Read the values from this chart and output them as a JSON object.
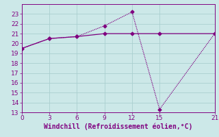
{
  "xlabel": "Windchill (Refroidissement éolien,°C)",
  "background_color": "#cce8e8",
  "grid_color": "#aacfcf",
  "line_color": "#800080",
  "line1_x": [
    0,
    3,
    6,
    9,
    12,
    15,
    21
  ],
  "line1_y": [
    19.5,
    20.5,
    20.7,
    21.0,
    21.0,
    21.0,
    21.0
  ],
  "line2_x": [
    0,
    3,
    6,
    9,
    12,
    15,
    21
  ],
  "line2_y": [
    19.5,
    20.5,
    20.7,
    21.8,
    23.2,
    13.3,
    21.0
  ],
  "xlim": [
    0,
    21
  ],
  "ylim": [
    13,
    24
  ],
  "xticks": [
    0,
    3,
    6,
    9,
    12,
    15,
    21
  ],
  "yticks": [
    13,
    14,
    15,
    16,
    17,
    18,
    19,
    20,
    21,
    22,
    23
  ],
  "tick_fontsize": 6.5,
  "xlabel_fontsize": 7,
  "marker": "D",
  "marker_size": 2.5,
  "line_width": 0.9
}
